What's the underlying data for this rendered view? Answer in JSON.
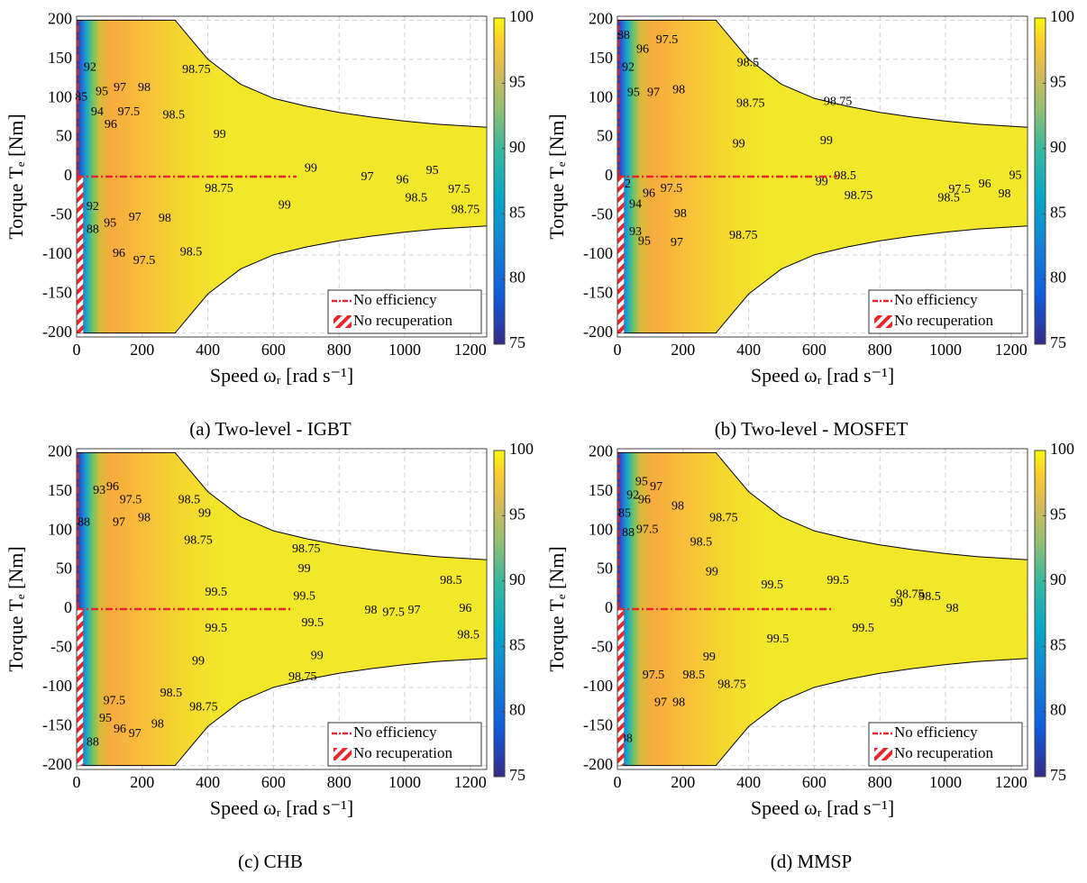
{
  "chart_data": [
    {
      "type": "contour",
      "title": "(a) Two-level - IGBT",
      "xlabel": "Speed ωᵣ [rad s⁻¹]",
      "ylabel": "Torque Tₑ [Nm]",
      "xlim": [
        0,
        1250
      ],
      "ylim": [
        -205,
        205
      ],
      "xticks": [
        0,
        200,
        400,
        600,
        800,
        1000,
        1200
      ],
      "yticks": [
        -200,
        -150,
        -100,
        -50,
        0,
        50,
        100,
        150,
        200
      ],
      "grid": true,
      "colorbar": {
        "lim": [
          75,
          100
        ],
        "ticks": [
          75,
          80,
          85,
          90,
          95,
          100
        ]
      },
      "legend": [
        "No efficiency",
        "No recuperation"
      ],
      "legend_loc": "lower right",
      "marker_color": "#e8262b",
      "no_efficiency_end": 670,
      "no_recuperation_width": 20,
      "torque_limit": {
        "x": [
          0,
          300,
          350,
          400,
          500,
          600,
          700,
          800,
          900,
          1000,
          1100,
          1250
        ],
        "y": [
          200,
          200,
          175,
          150,
          118,
          100,
          90,
          82,
          76,
          71,
          67,
          63
        ]
      },
      "contour_labels": {
        "values": [
          92,
          85,
          95,
          94,
          96,
          97,
          97.5,
          98,
          98.5,
          98.75,
          99,
          99,
          92,
          88,
          95,
          97,
          98,
          98.75,
          99,
          97.5,
          98.5,
          96,
          97,
          96,
          95,
          97.5,
          98.5,
          98.75
        ],
        "x": [
          41,
          14,
          77,
          63,
          104,
          132,
          159,
          206,
          296,
          365,
          436,
          714,
          49,
          49,
          102,
          178,
          269,
          434,
          634,
          206,
          349,
          129,
          886,
          993,
          1084,
          1166,
          1035,
          1185
        ],
        "y": [
          139,
          101,
          108,
          82,
          66,
          113,
          82,
          113,
          78,
          136,
          53,
          10,
          -39,
          -68,
          -60,
          -53,
          -54,
          -16,
          -37,
          -108,
          -97,
          -99,
          -1,
          -5,
          7,
          -17,
          -28,
          -43
        ]
      }
    },
    {
      "type": "contour",
      "title": "(b) Two-level - MOSFET",
      "xlabel": "Speed ωᵣ [rad s⁻¹]",
      "ylabel": "Torque Tₑ [Nm]",
      "xlim": [
        0,
        1250
      ],
      "ylim": [
        -205,
        205
      ],
      "xticks": [
        0,
        200,
        400,
        600,
        800,
        1000,
        1200
      ],
      "yticks": [
        -200,
        -150,
        -100,
        -50,
        0,
        50,
        100,
        150,
        200
      ],
      "grid": true,
      "colorbar": {
        "lim": [
          75,
          100
        ],
        "ticks": [
          75,
          80,
          85,
          90,
          95,
          100
        ]
      },
      "legend": [
        "No efficiency",
        "No recuperation"
      ],
      "legend_loc": "lower right",
      "marker_color": "#e8262b",
      "no_efficiency_end": 670,
      "no_recuperation_width": 20,
      "torque_limit": {
        "x": [
          0,
          300,
          350,
          400,
          500,
          600,
          700,
          800,
          900,
          1000,
          1100,
          1250
        ],
        "y": [
          200,
          200,
          175,
          150,
          118,
          100,
          90,
          82,
          76,
          71,
          67,
          63
        ]
      },
      "contour_labels": {
        "values": [
          88,
          92,
          95,
          96,
          97.5,
          97,
          98,
          98.5,
          98.75,
          98.75,
          99,
          99,
          98.5,
          99,
          98.75,
          92,
          94,
          93,
          95,
          96,
          97.5,
          98,
          97,
          98.75,
          95,
          96,
          98,
          97.5,
          98.5
        ],
        "x": [
          19,
          33,
          49,
          77,
          151,
          110,
          187,
          398,
          406,
          672,
          370,
          637,
          694,
          623,
          735,
          22,
          55,
          55,
          82,
          96,
          165,
          192,
          181,
          384,
          1213,
          1120,
          1180,
          1043,
          1010
        ],
        "y": [
          180,
          139,
          107,
          162,
          174,
          107,
          110,
          145,
          93,
          95,
          41,
          45,
          0,
          -7,
          -25,
          -10,
          -36,
          -71,
          -83,
          -22,
          -16,
          -48,
          -85,
          -76,
          1,
          -10,
          -23,
          -17,
          -28
        ]
      }
    },
    {
      "type": "contour",
      "title": "(c) CHB",
      "xlabel": "Speed ωᵣ [rad s⁻¹]",
      "ylabel": "Torque Tₑ [Nm]",
      "xlim": [
        0,
        1250
      ],
      "ylim": [
        -205,
        205
      ],
      "xticks": [
        0,
        200,
        400,
        600,
        800,
        1000,
        1200
      ],
      "yticks": [
        -200,
        -150,
        -100,
        -50,
        0,
        50,
        100,
        150,
        200
      ],
      "grid": true,
      "colorbar": {
        "lim": [
          75,
          100
        ],
        "ticks": [
          75,
          80,
          85,
          90,
          95,
          100
        ]
      },
      "legend": [
        "No efficiency",
        "No recuperation"
      ],
      "legend_loc": "lower right",
      "marker_color": "#e8262b",
      "no_efficiency_end": 660,
      "no_recuperation_width": 20,
      "torque_limit": {
        "x": [
          0,
          300,
          350,
          400,
          500,
          600,
          700,
          800,
          900,
          1000,
          1100,
          1250
        ],
        "y": [
          200,
          200,
          175,
          150,
          118,
          100,
          90,
          82,
          76,
          71,
          67,
          63
        ]
      },
      "contour_labels": {
        "values": [
          88,
          93,
          96,
          97.5,
          97,
          98,
          98.5,
          98.75,
          99,
          98.75,
          99,
          99.5,
          99.5,
          99.5,
          99.5,
          99,
          99,
          98.75,
          98.5,
          98.75,
          97.5,
          98,
          97,
          96,
          95,
          88,
          98,
          97.5,
          97,
          96,
          98.5,
          98.5
        ],
        "x": [
          22,
          69,
          110,
          165,
          129,
          206,
          343,
          371,
          390,
          700,
          694,
          425,
          694,
          425,
          719,
          371,
          733,
          689,
          288,
          387,
          115,
          247,
          178,
          132,
          88,
          49,
          897,
          966,
          1029,
          1185,
          1141,
          1194
        ],
        "y": [
          110,
          151,
          156,
          139,
          110,
          116,
          139,
          87,
          122,
          76,
          51,
          21,
          16,
          -25,
          -18,
          -67,
          -60,
          -87,
          -108,
          -126,
          -118,
          -148,
          -160,
          -154,
          -140,
          -171,
          -2,
          -5,
          -2,
          0,
          36,
          -34
        ]
      }
    },
    {
      "type": "contour",
      "title": "(d) MMSP",
      "xlabel": "Speed ωᵣ [rad s⁻¹]",
      "ylabel": "Torque Tₑ [Nm]",
      "xlim": [
        0,
        1250
      ],
      "ylim": [
        -205,
        205
      ],
      "xticks": [
        0,
        200,
        400,
        600,
        800,
        1000,
        1200
      ],
      "yticks": [
        -200,
        -150,
        -100,
        -50,
        0,
        50,
        100,
        150,
        200
      ],
      "grid": true,
      "colorbar": {
        "lim": [
          75,
          100
        ],
        "ticks": [
          75,
          80,
          85,
          90,
          95,
          100
        ]
      },
      "legend": [
        "No efficiency",
        "No recuperation"
      ],
      "legend_loc": "lower right",
      "marker_color": "#e8262b",
      "no_efficiency_end": 660,
      "no_recuperation_width": 20,
      "torque_limit": {
        "x": [
          0,
          300,
          350,
          400,
          500,
          600,
          700,
          800,
          900,
          1000,
          1100,
          1250
        ],
        "y": [
          200,
          200,
          175,
          150,
          118,
          100,
          90,
          82,
          76,
          71,
          67,
          63
        ]
      },
      "contour_labels": {
        "values": [
          85,
          88,
          92,
          95,
          96,
          97,
          97.5,
          98,
          98.5,
          98.75,
          99,
          99.5,
          99.5,
          99.5,
          99.5,
          99,
          98.75,
          98.5,
          98,
          97,
          97.5,
          99,
          98.75,
          98.5,
          98,
          88
        ],
        "x": [
          22,
          33,
          47,
          74,
          82,
          118,
          91,
          184,
          255,
          324,
          288,
          472,
          672,
          489,
          749,
          280,
          349,
          233,
          187,
          132,
          110,
          851,
          892,
          952,
          1021,
          27
        ],
        "y": [
          122,
          97,
          145,
          162,
          139,
          156,
          101,
          131,
          85,
          116,
          47,
          30,
          36,
          -39,
          -25,
          -62,
          -97,
          -85,
          -120,
          -120,
          -85,
          7,
          18,
          15,
          0,
          -166
        ]
      }
    }
  ]
}
